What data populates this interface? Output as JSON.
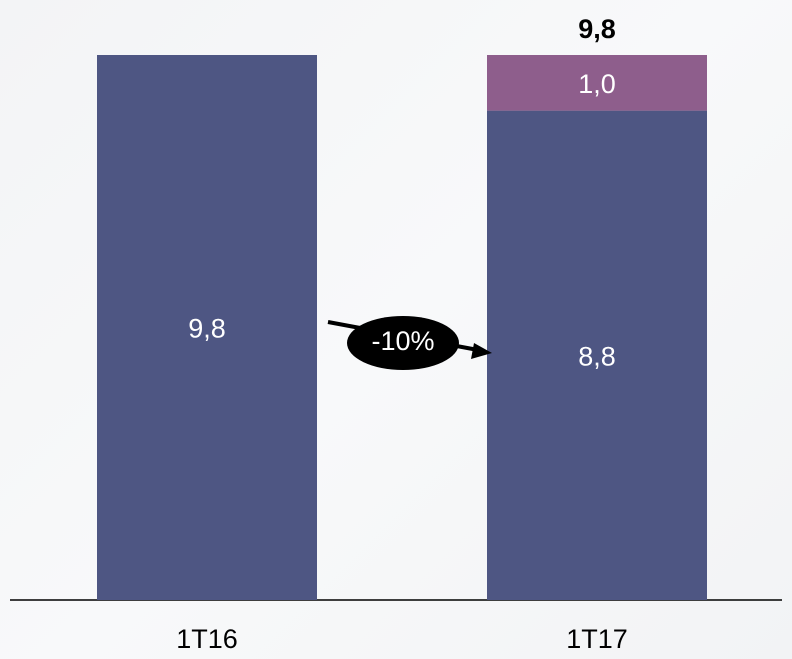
{
  "chart_data": {
    "type": "stacked_bar",
    "categories": [
      "1T16",
      "1T17"
    ],
    "series": [
      {
        "color": "#4e5683",
        "values": [
          9.8,
          8.8
        ],
        "value_labels": [
          "9,8",
          "8,8"
        ]
      },
      {
        "color": "#8e5e8c",
        "values": [
          null,
          1.0
        ],
        "value_labels": [
          null,
          "1,0"
        ]
      }
    ],
    "totals": [
      null,
      9.8
    ],
    "total_labels": [
      null,
      "9,8"
    ],
    "annotation": "-10%"
  }
}
